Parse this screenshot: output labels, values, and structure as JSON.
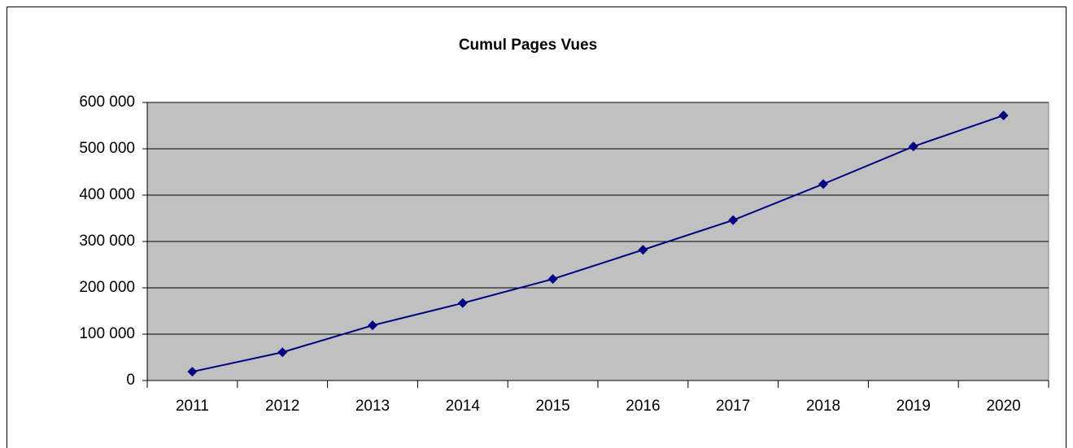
{
  "chart_data": {
    "type": "line",
    "title": "Cumul Pages Vues",
    "categories": [
      "2011",
      "2012",
      "2013",
      "2014",
      "2015",
      "2016",
      "2017",
      "2018",
      "2019",
      "2020"
    ],
    "values": [
      19000,
      61000,
      119000,
      167000,
      219000,
      282000,
      346000,
      424000,
      505000,
      572000
    ],
    "color": "#000080",
    "ylim": [
      0,
      600000
    ],
    "yticks": [
      0,
      {
        "value": 100000,
        "label": "100 000"
      },
      {
        "value": 200000,
        "label": "200 000"
      },
      {
        "value": 300000,
        "label": "300 000"
      },
      {
        "value": 400000,
        "label": "400 000"
      },
      {
        "value": 500000,
        "label": "500 000"
      },
      {
        "value": 600000,
        "label": "600 000"
      }
    ],
    "grid": true
  }
}
